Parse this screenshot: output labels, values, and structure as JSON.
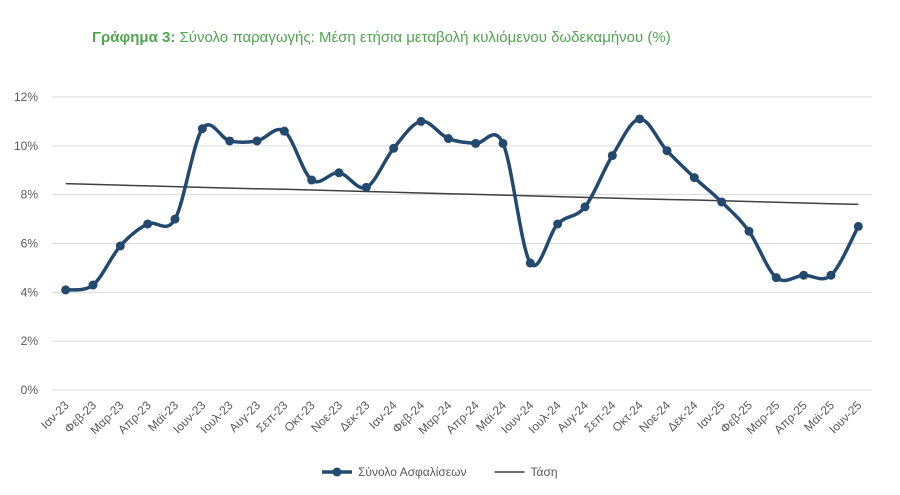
{
  "chart_data": {
    "type": "line",
    "title_label": "Γράφημα 3:",
    "title": "Σύνολο παραγωγής:  Μέση ετήσια μεταβολή κυλιόμενου δωδεκαμήνου (%)",
    "categories": [
      "Ιαν-23",
      "Φεβ-23",
      "Μαρ-23",
      "Απρ-23",
      "Μαϊ-23",
      "Ιουν-23",
      "Ιουλ-23",
      "Αυγ-23",
      "Σεπ-23",
      "Οκτ-23",
      "Νοε-23",
      "Δεκ-23",
      "Ιαν-24",
      "Φεβ-24",
      "Μαρ-24",
      "Απρ-24",
      "Μαϊ-24",
      "Ιουν-24",
      "Ιουλ-24",
      "Αυγ-24",
      "Σεπ-24",
      "Οκτ-24",
      "Νοε-24",
      "Δεκ-24",
      "Ιαν-25",
      "Φεβ-25",
      "Μαρ-25",
      "Απρ-25",
      "Μαϊ-25",
      "Ιουν-25"
    ],
    "series": [
      {
        "name": "Σύνολο Ασφαλίσεων",
        "color": "#24496f",
        "smooth": true,
        "markers": true,
        "values": [
          4.1,
          4.3,
          5.9,
          6.8,
          7.0,
          10.7,
          10.2,
          10.2,
          10.6,
          8.6,
          8.9,
          8.3,
          9.9,
          11.0,
          10.3,
          10.1,
          10.1,
          5.2,
          6.8,
          7.5,
          9.6,
          11.1,
          9.8,
          8.7,
          7.7,
          6.5,
          4.6,
          4.7,
          4.7,
          6.7
        ]
      },
      {
        "name": "Τάση",
        "color": "#404040",
        "smooth": false,
        "markers": false,
        "values": [
          8.45,
          8.42,
          8.39,
          8.36,
          8.33,
          8.3,
          8.27,
          8.24,
          8.22,
          8.19,
          8.16,
          8.13,
          8.1,
          8.07,
          8.04,
          8.01,
          7.98,
          7.95,
          7.92,
          7.89,
          7.86,
          7.83,
          7.8,
          7.78,
          7.75,
          7.72,
          7.69,
          7.66,
          7.63,
          7.6
        ]
      }
    ],
    "ylim": [
      0,
      12
    ],
    "yticks": [
      {
        "value": 0,
        "label": "0%"
      },
      {
        "value": 2,
        "label": "2%"
      },
      {
        "value": 4,
        "label": "4%"
      },
      {
        "value": 6,
        "label": "6%"
      },
      {
        "value": 8,
        "label": "8%"
      },
      {
        "value": 10,
        "label": "10%"
      },
      {
        "value": 12,
        "label": "12%"
      }
    ],
    "grid": true,
    "legend": "bottom"
  }
}
